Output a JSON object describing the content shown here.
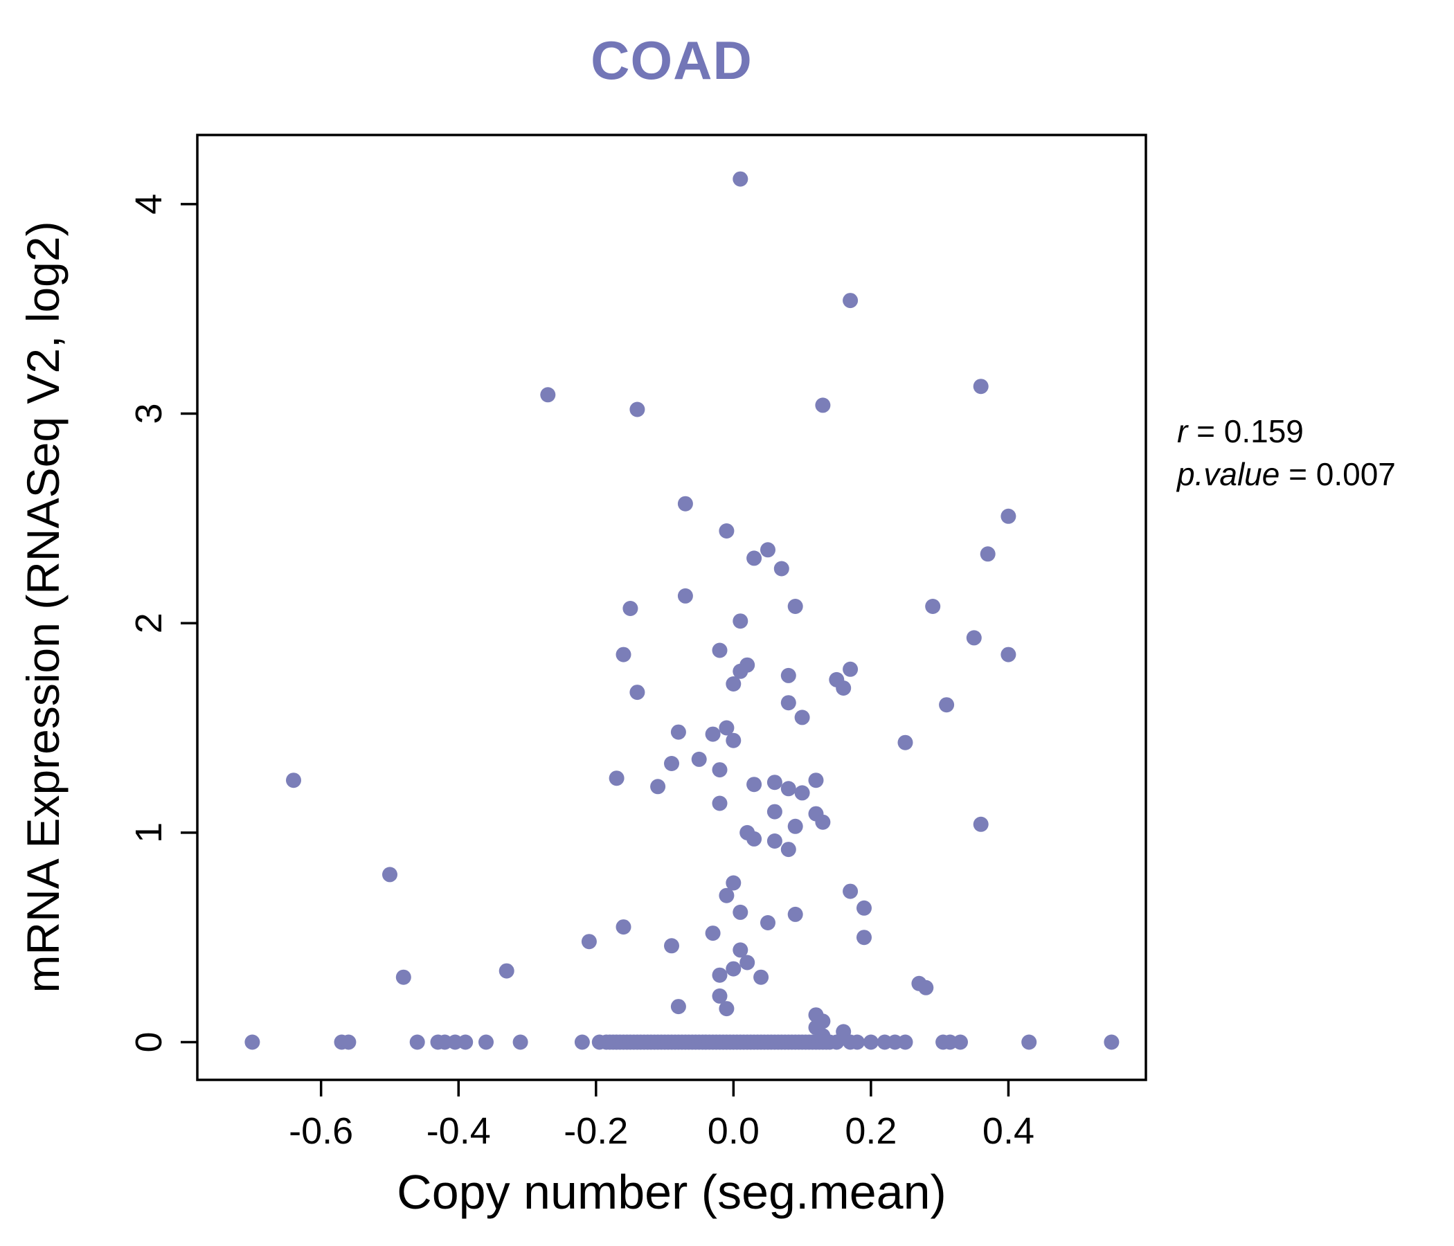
{
  "title": "COAD",
  "stats": {
    "sep": " = ",
    "lines": [
      {
        "label": "r",
        "value": "0.159"
      },
      {
        "label": "p.value",
        "value": "0.007"
      }
    ]
  },
  "chart_data": {
    "type": "scatter",
    "title": "COAD",
    "xlabel": "Copy number (seg.mean)",
    "ylabel": "mRNA Expression (RNASeq V2, log2)",
    "xlim": [
      -0.78,
      0.6
    ],
    "ylim": [
      -0.18,
      4.33
    ],
    "xticks": [
      -0.6,
      -0.4,
      -0.2,
      0.0,
      0.2,
      0.4
    ],
    "xtick_labels": [
      "-0.6",
      "-0.4",
      "-0.2",
      "0.0",
      "0.2",
      "0.4"
    ],
    "yticks": [
      0,
      1,
      2,
      3,
      4
    ],
    "ytick_labels": [
      "0",
      "1",
      "2",
      "3",
      "4"
    ],
    "legend": "none",
    "grid": false,
    "point_color": "#7b7eb8",
    "title_color": "#7376b7",
    "axis_color": "#000000",
    "annotation": {
      "r": "0.159",
      "p_value": "0.007"
    },
    "points": [
      [
        0.01,
        4.12
      ],
      [
        0.17,
        3.54
      ],
      [
        0.36,
        3.13
      ],
      [
        -0.27,
        3.09
      ],
      [
        0.13,
        3.04
      ],
      [
        -0.14,
        3.02
      ],
      [
        -0.07,
        2.57
      ],
      [
        0.4,
        2.51
      ],
      [
        -0.01,
        2.44
      ],
      [
        0.37,
        2.33
      ],
      [
        0.05,
        2.35
      ],
      [
        0.03,
        2.31
      ],
      [
        0.07,
        2.26
      ],
      [
        -0.07,
        2.13
      ],
      [
        0.09,
        2.08
      ],
      [
        0.29,
        2.08
      ],
      [
        -0.15,
        2.07
      ],
      [
        0.01,
        2.01
      ],
      [
        0.35,
        1.93
      ],
      [
        -0.02,
        1.87
      ],
      [
        -0.16,
        1.85
      ],
      [
        0.4,
        1.85
      ],
      [
        0.02,
        1.8
      ],
      [
        0.17,
        1.78
      ],
      [
        0.01,
        1.77
      ],
      [
        0.08,
        1.75
      ],
      [
        0.15,
        1.73
      ],
      [
        0.0,
        1.71
      ],
      [
        0.16,
        1.69
      ],
      [
        -0.14,
        1.67
      ],
      [
        0.08,
        1.62
      ],
      [
        0.31,
        1.61
      ],
      [
        0.1,
        1.55
      ],
      [
        -0.01,
        1.5
      ],
      [
        -0.08,
        1.48
      ],
      [
        -0.03,
        1.47
      ],
      [
        0.0,
        1.44
      ],
      [
        0.25,
        1.43
      ],
      [
        -0.05,
        1.35
      ],
      [
        -0.09,
        1.33
      ],
      [
        -0.02,
        1.3
      ],
      [
        -0.17,
        1.26
      ],
      [
        -0.64,
        1.25
      ],
      [
        0.12,
        1.25
      ],
      [
        0.06,
        1.24
      ],
      [
        0.03,
        1.23
      ],
      [
        -0.11,
        1.22
      ],
      [
        0.08,
        1.21
      ],
      [
        0.1,
        1.19
      ],
      [
        -0.02,
        1.14
      ],
      [
        0.06,
        1.1
      ],
      [
        0.12,
        1.09
      ],
      [
        0.13,
        1.05
      ],
      [
        0.36,
        1.04
      ],
      [
        0.09,
        1.03
      ],
      [
        0.02,
        1.0
      ],
      [
        0.03,
        0.97
      ],
      [
        0.06,
        0.96
      ],
      [
        0.08,
        0.92
      ],
      [
        -0.5,
        0.8
      ],
      [
        0.0,
        0.76
      ],
      [
        0.17,
        0.72
      ],
      [
        -0.01,
        0.7
      ],
      [
        0.19,
        0.64
      ],
      [
        0.01,
        0.62
      ],
      [
        0.09,
        0.61
      ],
      [
        0.05,
        0.57
      ],
      [
        -0.16,
        0.55
      ],
      [
        -0.03,
        0.52
      ],
      [
        0.19,
        0.5
      ],
      [
        -0.21,
        0.48
      ],
      [
        -0.09,
        0.46
      ],
      [
        0.01,
        0.44
      ],
      [
        0.02,
        0.38
      ],
      [
        0.0,
        0.35
      ],
      [
        -0.33,
        0.34
      ],
      [
        -0.02,
        0.32
      ],
      [
        0.04,
        0.31
      ],
      [
        -0.48,
        0.31
      ],
      [
        0.27,
        0.28
      ],
      [
        0.28,
        0.26
      ],
      [
        -0.02,
        0.22
      ],
      [
        -0.08,
        0.17
      ],
      [
        -0.01,
        0.16
      ],
      [
        0.12,
        0.13
      ],
      [
        0.13,
        0.1
      ],
      [
        0.12,
        0.07
      ],
      [
        0.16,
        0.05
      ],
      [
        0.13,
        0.03
      ],
      [
        -0.7,
        0
      ],
      [
        -0.57,
        0
      ],
      [
        -0.56,
        0
      ],
      [
        -0.46,
        0
      ],
      [
        -0.43,
        0
      ],
      [
        -0.42,
        0
      ],
      [
        -0.405,
        0
      ],
      [
        -0.39,
        0
      ],
      [
        -0.36,
        0
      ],
      [
        -0.31,
        0
      ],
      [
        -0.22,
        0
      ],
      [
        -0.195,
        0
      ],
      [
        -0.185,
        0
      ],
      [
        -0.18,
        0
      ],
      [
        -0.175,
        0
      ],
      [
        -0.17,
        0
      ],
      [
        -0.165,
        0
      ],
      [
        -0.16,
        0
      ],
      [
        -0.155,
        0
      ],
      [
        -0.15,
        0
      ],
      [
        -0.145,
        0
      ],
      [
        -0.14,
        0
      ],
      [
        -0.135,
        0
      ],
      [
        -0.13,
        0
      ],
      [
        -0.125,
        0
      ],
      [
        -0.12,
        0
      ],
      [
        -0.115,
        0
      ],
      [
        -0.11,
        0
      ],
      [
        -0.105,
        0
      ],
      [
        -0.1,
        0
      ],
      [
        -0.095,
        0
      ],
      [
        -0.09,
        0
      ],
      [
        -0.085,
        0
      ],
      [
        -0.08,
        0
      ],
      [
        -0.075,
        0
      ],
      [
        -0.07,
        0
      ],
      [
        -0.065,
        0
      ],
      [
        -0.06,
        0
      ],
      [
        -0.055,
        0
      ],
      [
        -0.05,
        0
      ],
      [
        -0.045,
        0
      ],
      [
        -0.04,
        0
      ],
      [
        -0.035,
        0
      ],
      [
        -0.03,
        0
      ],
      [
        -0.025,
        0
      ],
      [
        -0.02,
        0
      ],
      [
        -0.015,
        0
      ],
      [
        -0.01,
        0
      ],
      [
        -0.005,
        0
      ],
      [
        0.0,
        0
      ],
      [
        0.005,
        0
      ],
      [
        0.01,
        0
      ],
      [
        0.015,
        0
      ],
      [
        0.02,
        0
      ],
      [
        0.025,
        0
      ],
      [
        0.03,
        0
      ],
      [
        0.035,
        0
      ],
      [
        0.04,
        0
      ],
      [
        0.045,
        0
      ],
      [
        0.05,
        0
      ],
      [
        0.055,
        0
      ],
      [
        0.06,
        0
      ],
      [
        0.065,
        0
      ],
      [
        0.07,
        0
      ],
      [
        0.075,
        0
      ],
      [
        0.08,
        0
      ],
      [
        0.085,
        0
      ],
      [
        0.09,
        0
      ],
      [
        0.095,
        0
      ],
      [
        0.1,
        0
      ],
      [
        0.105,
        0
      ],
      [
        0.11,
        0
      ],
      [
        0.115,
        0
      ],
      [
        0.12,
        0
      ],
      [
        0.125,
        0
      ],
      [
        0.13,
        0
      ],
      [
        0.135,
        0
      ],
      [
        0.14,
        0
      ],
      [
        0.15,
        0
      ],
      [
        0.17,
        0
      ],
      [
        0.18,
        0
      ],
      [
        0.2,
        0
      ],
      [
        0.22,
        0
      ],
      [
        0.235,
        0
      ],
      [
        0.25,
        0
      ],
      [
        0.305,
        0
      ],
      [
        0.315,
        0
      ],
      [
        0.33,
        0
      ],
      [
        0.43,
        0
      ],
      [
        0.55,
        0
      ]
    ]
  }
}
